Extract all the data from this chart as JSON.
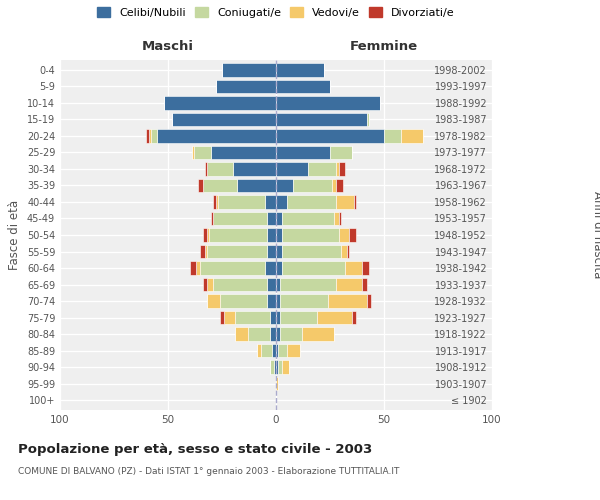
{
  "age_groups": [
    "100+",
    "95-99",
    "90-94",
    "85-89",
    "80-84",
    "75-79",
    "70-74",
    "65-69",
    "60-64",
    "55-59",
    "50-54",
    "45-49",
    "40-44",
    "35-39",
    "30-34",
    "25-29",
    "20-24",
    "15-19",
    "10-14",
    "5-9",
    "0-4"
  ],
  "birth_years": [
    "≤ 1902",
    "1903-1907",
    "1908-1912",
    "1913-1917",
    "1918-1922",
    "1923-1927",
    "1928-1932",
    "1933-1937",
    "1938-1942",
    "1943-1947",
    "1948-1952",
    "1953-1957",
    "1958-1962",
    "1963-1967",
    "1968-1972",
    "1973-1977",
    "1978-1982",
    "1983-1987",
    "1988-1992",
    "1993-1997",
    "1998-2002"
  ],
  "maschi": {
    "celibi": [
      0,
      0,
      1,
      2,
      3,
      3,
      4,
      4,
      5,
      4,
      4,
      4,
      5,
      18,
      20,
      30,
      55,
      48,
      52,
      28,
      25
    ],
    "coniugati": [
      0,
      0,
      2,
      5,
      10,
      16,
      22,
      25,
      30,
      28,
      27,
      25,
      22,
      16,
      12,
      8,
      3,
      0,
      0,
      0,
      0
    ],
    "vedovi": [
      0,
      0,
      0,
      2,
      6,
      5,
      6,
      3,
      2,
      1,
      1,
      0,
      1,
      0,
      0,
      1,
      1,
      0,
      0,
      0,
      0
    ],
    "divorziati": [
      0,
      0,
      0,
      0,
      0,
      2,
      0,
      2,
      3,
      2,
      2,
      1,
      1,
      2,
      1,
      0,
      1,
      0,
      0,
      0,
      0
    ]
  },
  "femmine": {
    "nubili": [
      0,
      0,
      1,
      1,
      2,
      2,
      2,
      2,
      3,
      3,
      3,
      3,
      5,
      8,
      15,
      25,
      50,
      42,
      48,
      25,
      22
    ],
    "coniugate": [
      0,
      0,
      2,
      4,
      10,
      17,
      22,
      26,
      29,
      27,
      26,
      24,
      23,
      18,
      13,
      10,
      8,
      1,
      0,
      0,
      0
    ],
    "vedove": [
      0,
      1,
      3,
      6,
      15,
      16,
      18,
      12,
      8,
      3,
      5,
      2,
      8,
      2,
      1,
      0,
      10,
      0,
      0,
      0,
      0
    ],
    "divorziate": [
      0,
      0,
      0,
      0,
      0,
      2,
      2,
      2,
      3,
      1,
      3,
      1,
      1,
      3,
      3,
      0,
      0,
      0,
      0,
      0,
      0
    ]
  },
  "colors": {
    "celibi": "#3c6e9e",
    "coniugati": "#c5d8a0",
    "vedovi": "#f5c96a",
    "divorziati": "#c0392b"
  },
  "title": "Popolazione per età, sesso e stato civile - 2003",
  "subtitle": "COMUNE DI BALVANO (PZ) - Dati ISTAT 1° gennaio 2003 - Elaborazione TUTTITALIA.IT",
  "xlabel_left": "Maschi",
  "xlabel_right": "Femmine",
  "ylabel_left": "Fasce di età",
  "ylabel_right": "Anni di nascita",
  "xlim": 100,
  "bg_color": "#ffffff",
  "legend_labels": [
    "Celibi/Nubili",
    "Coniugati/e",
    "Vedovi/e",
    "Divorziati/e"
  ]
}
